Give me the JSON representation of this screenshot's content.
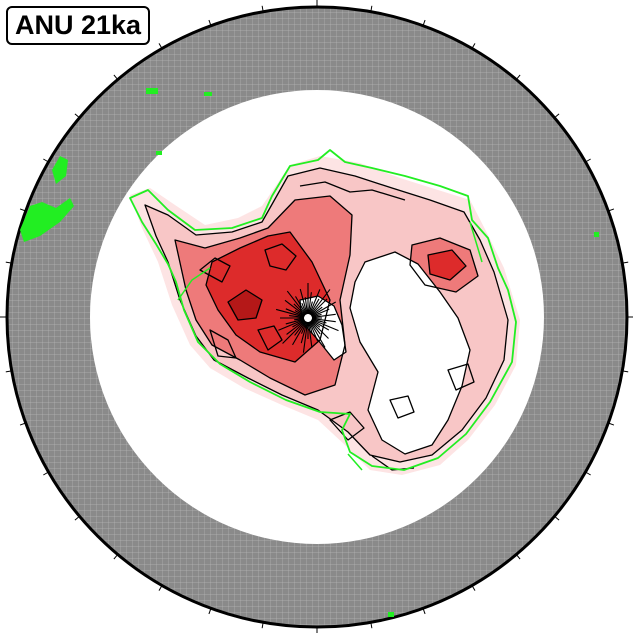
{
  "map": {
    "title": "ANU 21ka",
    "projection": "south-polar-stereographic",
    "colors": {
      "ocean_mask": "#8a8a8a",
      "graticule": "#b5b5b5",
      "background": "#ffffff",
      "high_relief": "#dd2b2b",
      "mid_relief": "#ee7a7a",
      "low_relief": "#f8c6c6",
      "faint_relief": "#fde4e4",
      "contour": "#000000",
      "coastline": "#22ee22"
    }
  }
}
